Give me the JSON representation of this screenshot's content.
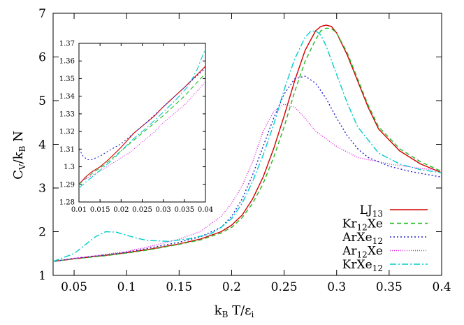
{
  "chart_data": {
    "type": "line",
    "title": "",
    "xlabel": "k_B T/ε_i",
    "ylabel": "C_V/k_B N",
    "xlim": [
      0.03,
      0.4
    ],
    "ylim": [
      1,
      7
    ],
    "xticks": [
      "0.05",
      "0.1",
      "0.15",
      "0.2",
      "0.25",
      "0.3",
      "0.35",
      "0.4"
    ],
    "yticks": [
      "1",
      "2",
      "3",
      "4",
      "5",
      "6",
      "7"
    ],
    "legend_position": "bottom-right",
    "grid": false,
    "series": [
      {
        "name": "LJ13",
        "label_main": "LJ",
        "label_sub": "13",
        "label_tail": "",
        "color": "#d40000",
        "dash": "",
        "x": [
          0.03,
          0.05,
          0.08,
          0.1,
          0.12,
          0.15,
          0.17,
          0.19,
          0.2,
          0.21,
          0.22,
          0.23,
          0.24,
          0.25,
          0.26,
          0.27,
          0.28,
          0.285,
          0.29,
          0.295,
          0.3,
          0.31,
          0.32,
          0.33,
          0.34,
          0.36,
          0.38,
          0.4
        ],
        "y": [
          1.32,
          1.38,
          1.46,
          1.52,
          1.59,
          1.72,
          1.83,
          2.0,
          2.15,
          2.38,
          2.75,
          3.25,
          3.9,
          4.65,
          5.45,
          6.15,
          6.6,
          6.7,
          6.73,
          6.7,
          6.55,
          6.05,
          5.45,
          4.85,
          4.35,
          3.85,
          3.55,
          3.35
        ]
      },
      {
        "name": "Kr12Xe",
        "label_main": "Kr",
        "label_sub": "12",
        "label_tail": "Xe",
        "color": "#22bb22",
        "dash": "6,4",
        "x": [
          0.03,
          0.05,
          0.08,
          0.1,
          0.12,
          0.15,
          0.17,
          0.19,
          0.2,
          0.21,
          0.22,
          0.23,
          0.24,
          0.25,
          0.26,
          0.27,
          0.28,
          0.285,
          0.29,
          0.295,
          0.3,
          0.31,
          0.32,
          0.33,
          0.34,
          0.36,
          0.38,
          0.4
        ],
        "y": [
          1.32,
          1.38,
          1.45,
          1.51,
          1.58,
          1.71,
          1.81,
          1.97,
          2.1,
          2.32,
          2.65,
          3.1,
          3.7,
          4.4,
          5.2,
          5.9,
          6.4,
          6.6,
          6.66,
          6.65,
          6.55,
          6.1,
          5.5,
          4.9,
          4.4,
          3.9,
          3.6,
          3.38
        ]
      },
      {
        "name": "ArXe12",
        "label_main": "ArXe",
        "label_sub": "12",
        "label_tail": "",
        "color": "#2222cc",
        "dash": "2,3",
        "x": [
          0.03,
          0.05,
          0.08,
          0.1,
          0.12,
          0.15,
          0.17,
          0.19,
          0.2,
          0.21,
          0.22,
          0.23,
          0.24,
          0.25,
          0.26,
          0.27,
          0.28,
          0.29,
          0.3,
          0.31,
          0.32,
          0.33,
          0.35,
          0.37,
          0.4
        ],
        "y": [
          1.32,
          1.39,
          1.47,
          1.53,
          1.62,
          1.76,
          1.88,
          2.1,
          2.35,
          2.75,
          3.3,
          3.95,
          4.6,
          5.15,
          5.5,
          5.56,
          5.4,
          5.05,
          4.6,
          4.2,
          3.9,
          3.7,
          3.5,
          3.38,
          3.25
        ]
      },
      {
        "name": "Ar12Xe",
        "label_main": "Ar",
        "label_sub": "12",
        "label_tail": "Xe",
        "color": "#dd22dd",
        "dash": "1,2",
        "x": [
          0.03,
          0.05,
          0.08,
          0.1,
          0.12,
          0.15,
          0.17,
          0.19,
          0.2,
          0.21,
          0.22,
          0.23,
          0.24,
          0.25,
          0.26,
          0.27,
          0.28,
          0.3,
          0.32,
          0.35,
          0.38,
          0.4
        ],
        "y": [
          1.32,
          1.39,
          1.48,
          1.55,
          1.65,
          1.83,
          2.0,
          2.35,
          2.65,
          3.05,
          3.6,
          4.3,
          4.75,
          4.92,
          4.85,
          4.6,
          4.3,
          3.95,
          3.7,
          3.55,
          3.45,
          3.4
        ]
      },
      {
        "name": "KrXe12",
        "label_main": "KrXe",
        "label_sub": "12",
        "label_tail": "",
        "color": "#00cccc",
        "dash": "9,3,2,3",
        "x": [
          0.03,
          0.05,
          0.07,
          0.08,
          0.09,
          0.1,
          0.11,
          0.12,
          0.14,
          0.16,
          0.18,
          0.19,
          0.2,
          0.21,
          0.22,
          0.23,
          0.24,
          0.25,
          0.26,
          0.27,
          0.275,
          0.28,
          0.285,
          0.29,
          0.3,
          0.31,
          0.32,
          0.34,
          0.36,
          0.38,
          0.4
        ],
        "y": [
          1.32,
          1.5,
          1.88,
          2.0,
          1.99,
          1.92,
          1.85,
          1.8,
          1.78,
          1.84,
          1.95,
          2.1,
          2.3,
          2.65,
          3.15,
          3.75,
          4.45,
          5.25,
          5.95,
          6.45,
          6.58,
          6.6,
          6.5,
          6.25,
          5.6,
          4.95,
          4.4,
          3.8,
          3.55,
          3.42,
          3.35
        ]
      }
    ],
    "inset": {
      "xlim": [
        0.01,
        0.04
      ],
      "ylim": [
        1.28,
        1.37
      ],
      "xticks": [
        "0.01",
        "0.015",
        "0.02",
        "0.025",
        "0.03",
        "0.035",
        "0.04"
      ],
      "yticks": [
        "1.28",
        "1.29",
        "1.3",
        "1.31",
        "1.32",
        "1.33",
        "1.34",
        "1.35",
        "1.36",
        "1.37"
      ],
      "series": [
        {
          "name": "LJ13",
          "x": [
            0.01,
            0.0115,
            0.013,
            0.015,
            0.017,
            0.02,
            0.023,
            0.025,
            0.028,
            0.03,
            0.035,
            0.04
          ],
          "y": [
            1.29,
            1.294,
            1.297,
            1.3,
            1.304,
            1.311,
            1.319,
            1.323,
            1.329,
            1.334,
            1.345,
            1.357
          ]
        },
        {
          "name": "Kr12Xe",
          "x": [
            0.01,
            0.013,
            0.016,
            0.02,
            0.023,
            0.026,
            0.03,
            0.035,
            0.04
          ],
          "y": [
            1.29,
            1.296,
            1.301,
            1.309,
            1.315,
            1.321,
            1.329,
            1.34,
            1.353
          ]
        },
        {
          "name": "ArXe12",
          "x": [
            0.01,
            0.011,
            0.012,
            0.013,
            0.015,
            0.017,
            0.02,
            0.023,
            0.026,
            0.03,
            0.035,
            0.04
          ],
          "y": [
            1.31,
            1.306,
            1.304,
            1.304,
            1.306,
            1.309,
            1.313,
            1.319,
            1.325,
            1.334,
            1.345,
            1.356
          ]
        },
        {
          "name": "Ar12Xe",
          "x": [
            0.01,
            0.013,
            0.016,
            0.02,
            0.022,
            0.025,
            0.028,
            0.03,
            0.035,
            0.04
          ],
          "y": [
            1.291,
            1.295,
            1.299,
            1.305,
            1.308,
            1.314,
            1.32,
            1.325,
            1.335,
            1.348
          ]
        },
        {
          "name": "KrXe12",
          "x": [
            0.01,
            0.012,
            0.015,
            0.018,
            0.02,
            0.023,
            0.026,
            0.03,
            0.033,
            0.036,
            0.038,
            0.04
          ],
          "y": [
            1.288,
            1.292,
            1.298,
            1.304,
            1.309,
            1.316,
            1.322,
            1.331,
            1.338,
            1.346,
            1.355,
            1.367
          ]
        }
      ]
    }
  }
}
